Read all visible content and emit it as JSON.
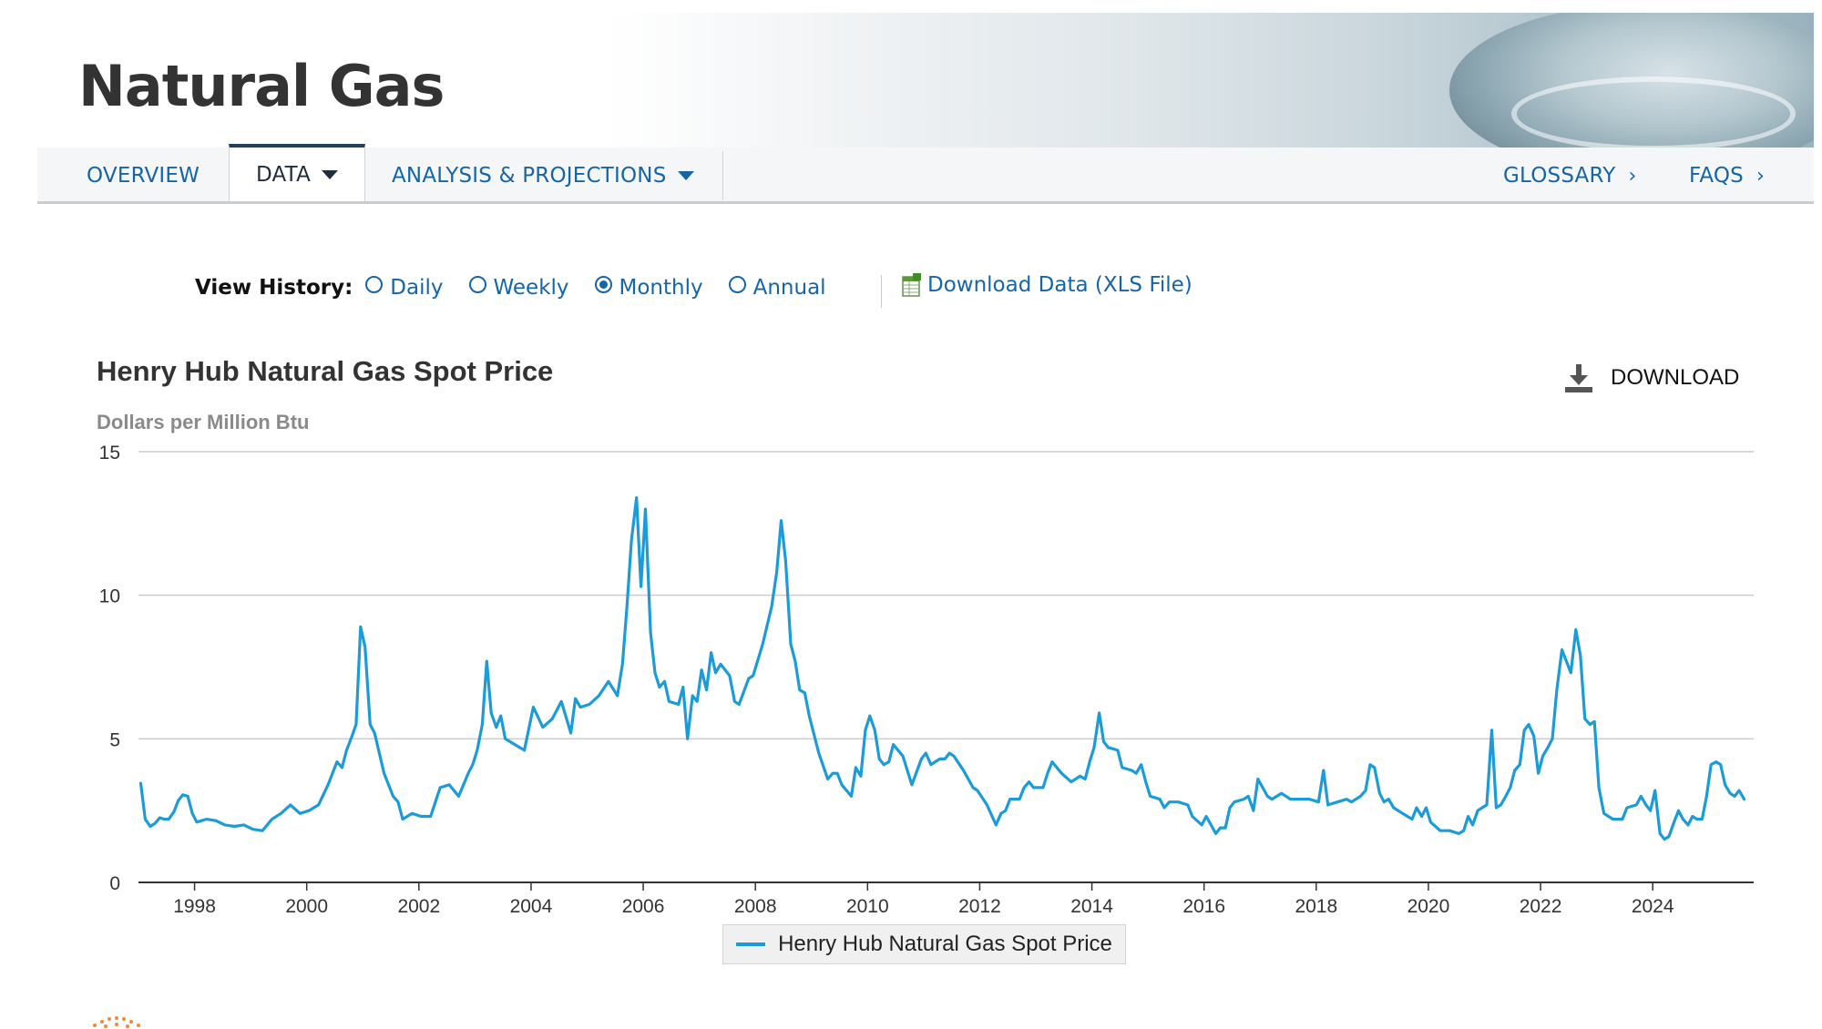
{
  "header": {
    "title": "Natural Gas"
  },
  "nav": {
    "items": [
      {
        "label": "OVERVIEW"
      },
      {
        "label": "DATA"
      },
      {
        "label": "ANALYSIS & PROJECTIONS"
      }
    ],
    "right_items": [
      {
        "label": "GLOSSARY"
      },
      {
        "label": "FAQS"
      }
    ],
    "active": "DATA"
  },
  "view_history": {
    "label": "View History:",
    "options": [
      "Daily",
      "Weekly",
      "Monthly",
      "Annual"
    ],
    "selected": "Monthly",
    "download_link": "Download Data (XLS File)"
  },
  "chart_header": {
    "download_label": "DOWNLOAD"
  },
  "colors": {
    "series": "#1b9bd8",
    "link": "#1565a8",
    "nav_active_border": "#1f3f63"
  },
  "chart_data": {
    "type": "line",
    "title": "Henry Hub Natural Gas Spot Price",
    "ylabel": "Dollars per Million Btu",
    "xlabel": "",
    "xlim": [
      1997,
      2025.8
    ],
    "ylim": [
      0,
      15
    ],
    "yticks": [
      0,
      5,
      10,
      15
    ],
    "xticks": [
      1998,
      2000,
      2002,
      2004,
      2006,
      2008,
      2010,
      2012,
      2014,
      2016,
      2018,
      2020,
      2022,
      2024
    ],
    "grid": true,
    "legend_position": "bottom",
    "series": [
      {
        "name": "Henry Hub Natural Gas Spot Price",
        "points": [
          [
            1997.04,
            3.45
          ],
          [
            1997.12,
            2.2
          ],
          [
            1997.21,
            1.95
          ],
          [
            1997.29,
            2.05
          ],
          [
            1997.38,
            2.25
          ],
          [
            1997.46,
            2.2
          ],
          [
            1997.54,
            2.2
          ],
          [
            1997.63,
            2.45
          ],
          [
            1997.71,
            2.85
          ],
          [
            1997.79,
            3.05
          ],
          [
            1997.88,
            3.0
          ],
          [
            1997.96,
            2.4
          ],
          [
            1998.04,
            2.1
          ],
          [
            1998.21,
            2.2
          ],
          [
            1998.38,
            2.15
          ],
          [
            1998.54,
            2.0
          ],
          [
            1998.71,
            1.95
          ],
          [
            1998.88,
            2.0
          ],
          [
            1999.04,
            1.85
          ],
          [
            1999.21,
            1.8
          ],
          [
            1999.38,
            2.2
          ],
          [
            1999.54,
            2.4
          ],
          [
            1999.71,
            2.7
          ],
          [
            1999.88,
            2.4
          ],
          [
            2000.04,
            2.5
          ],
          [
            2000.21,
            2.7
          ],
          [
            2000.38,
            3.4
          ],
          [
            2000.54,
            4.2
          ],
          [
            2000.63,
            4.0
          ],
          [
            2000.71,
            4.6
          ],
          [
            2000.79,
            5.0
          ],
          [
            2000.88,
            5.5
          ],
          [
            2000.96,
            8.9
          ],
          [
            2001.04,
            8.2
          ],
          [
            2001.13,
            5.5
          ],
          [
            2001.21,
            5.2
          ],
          [
            2001.38,
            3.8
          ],
          [
            2001.54,
            3.0
          ],
          [
            2001.63,
            2.8
          ],
          [
            2001.71,
            2.2
          ],
          [
            2001.88,
            2.4
          ],
          [
            2002.04,
            2.3
          ],
          [
            2002.21,
            2.3
          ],
          [
            2002.38,
            3.3
          ],
          [
            2002.54,
            3.4
          ],
          [
            2002.71,
            3.0
          ],
          [
            2002.88,
            3.8
          ],
          [
            2002.96,
            4.1
          ],
          [
            2003.04,
            4.6
          ],
          [
            2003.13,
            5.5
          ],
          [
            2003.21,
            7.7
          ],
          [
            2003.29,
            5.9
          ],
          [
            2003.38,
            5.4
          ],
          [
            2003.46,
            5.8
          ],
          [
            2003.54,
            5.0
          ],
          [
            2003.71,
            4.8
          ],
          [
            2003.88,
            4.6
          ],
          [
            2004.04,
            6.1
          ],
          [
            2004.21,
            5.4
          ],
          [
            2004.38,
            5.7
          ],
          [
            2004.54,
            6.3
          ],
          [
            2004.71,
            5.2
          ],
          [
            2004.79,
            6.4
          ],
          [
            2004.88,
            6.1
          ],
          [
            2005.04,
            6.2
          ],
          [
            2005.21,
            6.5
          ],
          [
            2005.38,
            7.0
          ],
          [
            2005.54,
            6.5
          ],
          [
            2005.63,
            7.6
          ],
          [
            2005.71,
            9.6
          ],
          [
            2005.79,
            11.9
          ],
          [
            2005.88,
            13.4
          ],
          [
            2005.96,
            10.3
          ],
          [
            2006.04,
            13.0
          ],
          [
            2006.13,
            8.7
          ],
          [
            2006.21,
            7.3
          ],
          [
            2006.29,
            6.8
          ],
          [
            2006.38,
            7.0
          ],
          [
            2006.46,
            6.3
          ],
          [
            2006.63,
            6.2
          ],
          [
            2006.71,
            6.8
          ],
          [
            2006.79,
            5.0
          ],
          [
            2006.88,
            6.5
          ],
          [
            2006.96,
            6.3
          ],
          [
            2007.04,
            7.4
          ],
          [
            2007.13,
            6.7
          ],
          [
            2007.21,
            8.0
          ],
          [
            2007.29,
            7.3
          ],
          [
            2007.38,
            7.6
          ],
          [
            2007.54,
            7.2
          ],
          [
            2007.63,
            6.3
          ],
          [
            2007.71,
            6.2
          ],
          [
            2007.88,
            7.1
          ],
          [
            2007.96,
            7.2
          ],
          [
            2008.13,
            8.3
          ],
          [
            2008.29,
            9.6
          ],
          [
            2008.38,
            10.8
          ],
          [
            2008.46,
            12.6
          ],
          [
            2008.54,
            11.2
          ],
          [
            2008.63,
            8.3
          ],
          [
            2008.71,
            7.7
          ],
          [
            2008.79,
            6.7
          ],
          [
            2008.88,
            6.6
          ],
          [
            2008.96,
            5.8
          ],
          [
            2009.13,
            4.5
          ],
          [
            2009.29,
            3.6
          ],
          [
            2009.38,
            3.8
          ],
          [
            2009.46,
            3.8
          ],
          [
            2009.54,
            3.4
          ],
          [
            2009.71,
            3.0
          ],
          [
            2009.79,
            4.0
          ],
          [
            2009.88,
            3.7
          ],
          [
            2009.96,
            5.3
          ],
          [
            2010.04,
            5.8
          ],
          [
            2010.13,
            5.3
          ],
          [
            2010.21,
            4.3
          ],
          [
            2010.29,
            4.1
          ],
          [
            2010.38,
            4.2
          ],
          [
            2010.46,
            4.8
          ],
          [
            2010.63,
            4.4
          ],
          [
            2010.79,
            3.4
          ],
          [
            2010.96,
            4.3
          ],
          [
            2011.04,
            4.5
          ],
          [
            2011.13,
            4.1
          ],
          [
            2011.29,
            4.3
          ],
          [
            2011.38,
            4.3
          ],
          [
            2011.46,
            4.5
          ],
          [
            2011.54,
            4.4
          ],
          [
            2011.71,
            3.9
          ],
          [
            2011.88,
            3.3
          ],
          [
            2011.96,
            3.2
          ],
          [
            2012.13,
            2.7
          ],
          [
            2012.29,
            2.0
          ],
          [
            2012.38,
            2.4
          ],
          [
            2012.46,
            2.5
          ],
          [
            2012.54,
            2.9
          ],
          [
            2012.71,
            2.9
          ],
          [
            2012.79,
            3.3
          ],
          [
            2012.88,
            3.5
          ],
          [
            2012.96,
            3.3
          ],
          [
            2013.13,
            3.3
          ],
          [
            2013.21,
            3.8
          ],
          [
            2013.29,
            4.2
          ],
          [
            2013.46,
            3.8
          ],
          [
            2013.63,
            3.5
          ],
          [
            2013.79,
            3.7
          ],
          [
            2013.88,
            3.6
          ],
          [
            2013.96,
            4.2
          ],
          [
            2014.04,
            4.7
          ],
          [
            2014.13,
            5.9
          ],
          [
            2014.21,
            4.9
          ],
          [
            2014.29,
            4.7
          ],
          [
            2014.46,
            4.6
          ],
          [
            2014.54,
            4.0
          ],
          [
            2014.71,
            3.9
          ],
          [
            2014.79,
            3.8
          ],
          [
            2014.88,
            4.1
          ],
          [
            2014.96,
            3.5
          ],
          [
            2015.04,
            3.0
          ],
          [
            2015.21,
            2.9
          ],
          [
            2015.29,
            2.6
          ],
          [
            2015.38,
            2.8
          ],
          [
            2015.54,
            2.8
          ],
          [
            2015.71,
            2.7
          ],
          [
            2015.79,
            2.3
          ],
          [
            2015.96,
            2.0
          ],
          [
            2016.04,
            2.3
          ],
          [
            2016.21,
            1.7
          ],
          [
            2016.29,
            1.9
          ],
          [
            2016.38,
            1.9
          ],
          [
            2016.46,
            2.6
          ],
          [
            2016.54,
            2.8
          ],
          [
            2016.71,
            2.9
          ],
          [
            2016.79,
            3.0
          ],
          [
            2016.88,
            2.5
          ],
          [
            2016.96,
            3.6
          ],
          [
            2017.13,
            3.0
          ],
          [
            2017.21,
            2.9
          ],
          [
            2017.38,
            3.1
          ],
          [
            2017.54,
            2.9
          ],
          [
            2017.71,
            2.9
          ],
          [
            2017.88,
            2.9
          ],
          [
            2018.04,
            2.8
          ],
          [
            2018.13,
            3.9
          ],
          [
            2018.21,
            2.7
          ],
          [
            2018.38,
            2.8
          ],
          [
            2018.54,
            2.9
          ],
          [
            2018.63,
            2.8
          ],
          [
            2018.79,
            3.0
          ],
          [
            2018.88,
            3.2
          ],
          [
            2018.96,
            4.1
          ],
          [
            2019.04,
            4.0
          ],
          [
            2019.13,
            3.1
          ],
          [
            2019.21,
            2.8
          ],
          [
            2019.29,
            2.9
          ],
          [
            2019.38,
            2.6
          ],
          [
            2019.54,
            2.4
          ],
          [
            2019.71,
            2.2
          ],
          [
            2019.79,
            2.6
          ],
          [
            2019.88,
            2.3
          ],
          [
            2019.96,
            2.6
          ],
          [
            2020.04,
            2.1
          ],
          [
            2020.21,
            1.8
          ],
          [
            2020.38,
            1.8
          ],
          [
            2020.54,
            1.7
          ],
          [
            2020.63,
            1.8
          ],
          [
            2020.71,
            2.3
          ],
          [
            2020.79,
            2.0
          ],
          [
            2020.88,
            2.5
          ],
          [
            2020.96,
            2.6
          ],
          [
            2021.04,
            2.7
          ],
          [
            2021.13,
            5.3
          ],
          [
            2021.21,
            2.6
          ],
          [
            2021.29,
            2.7
          ],
          [
            2021.38,
            3.0
          ],
          [
            2021.46,
            3.3
          ],
          [
            2021.54,
            3.9
          ],
          [
            2021.63,
            4.1
          ],
          [
            2021.71,
            5.3
          ],
          [
            2021.79,
            5.5
          ],
          [
            2021.88,
            5.1
          ],
          [
            2021.96,
            3.8
          ],
          [
            2022.04,
            4.4
          ],
          [
            2022.13,
            4.7
          ],
          [
            2022.21,
            5.0
          ],
          [
            2022.29,
            6.7
          ],
          [
            2022.38,
            8.1
          ],
          [
            2022.46,
            7.7
          ],
          [
            2022.54,
            7.3
          ],
          [
            2022.63,
            8.8
          ],
          [
            2022.71,
            7.9
          ],
          [
            2022.79,
            5.7
          ],
          [
            2022.88,
            5.5
          ],
          [
            2022.96,
            5.6
          ],
          [
            2023.04,
            3.3
          ],
          [
            2023.13,
            2.4
          ],
          [
            2023.29,
            2.2
          ],
          [
            2023.46,
            2.2
          ],
          [
            2023.54,
            2.6
          ],
          [
            2023.71,
            2.7
          ],
          [
            2023.79,
            3.0
          ],
          [
            2023.88,
            2.7
          ],
          [
            2023.96,
            2.5
          ],
          [
            2024.04,
            3.2
          ],
          [
            2024.13,
            1.7
          ],
          [
            2024.21,
            1.5
          ],
          [
            2024.29,
            1.6
          ],
          [
            2024.38,
            2.1
          ],
          [
            2024.46,
            2.5
          ],
          [
            2024.54,
            2.2
          ],
          [
            2024.63,
            2.0
          ],
          [
            2024.71,
            2.3
          ],
          [
            2024.79,
            2.2
          ],
          [
            2024.88,
            2.2
          ],
          [
            2024.96,
            3.0
          ],
          [
            2025.04,
            4.1
          ],
          [
            2025.13,
            4.2
          ],
          [
            2025.21,
            4.1
          ],
          [
            2025.29,
            3.4
          ],
          [
            2025.38,
            3.1
          ],
          [
            2025.46,
            3.0
          ],
          [
            2025.54,
            3.2
          ],
          [
            2025.63,
            2.9
          ]
        ]
      }
    ]
  }
}
